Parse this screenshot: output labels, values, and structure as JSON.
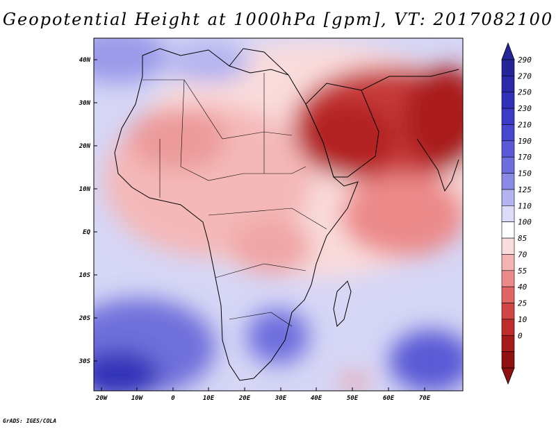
{
  "title": "Geopotential Height at 1000hPa [gpm], VT: 2017082100",
  "footer": "GrADS: IGES/COLA",
  "map": {
    "lon_range": [
      -25,
      80
    ],
    "lat_range": [
      -37,
      45
    ],
    "x_ticks": [
      "20W",
      "10W",
      "0",
      "10E",
      "20E",
      "30E",
      "40E",
      "50E",
      "60E",
      "70E"
    ],
    "y_ticks": [
      "40N",
      "30N",
      "20N",
      "10N",
      "EQ",
      "10S",
      "20S",
      "30S"
    ]
  },
  "colorbar": {
    "labels": [
      "290",
      "270",
      "250",
      "230",
      "210",
      "190",
      "170",
      "150",
      "125",
      "110",
      "100",
      "85",
      "70",
      "55",
      "40",
      "25",
      "10",
      "0"
    ],
    "colors": [
      "#25259a",
      "#2a2aa8",
      "#3030b8",
      "#3b3bc6",
      "#4646ce",
      "#5a5ad6",
      "#6e6ede",
      "#8a8ae6",
      "#b4b4f0",
      "#dcdcfa",
      "#ffffff",
      "#fadcdc",
      "#f4b4b4",
      "#ec8a8a",
      "#e06666",
      "#d24646",
      "#bf2c2c",
      "#a81a1a",
      "#8e1010"
    ]
  },
  "chart_data": {
    "type": "heatmap",
    "title": "Geopotential Height at 1000hPa [gpm], VT: 2017082100",
    "variable": "Geopotential Height at 1000hPa",
    "units": "gpm",
    "valid_time": "2017082100",
    "x_range": [
      -25,
      80
    ],
    "y_range": [
      -37,
      45
    ],
    "levels": [
      0,
      10,
      25,
      40,
      55,
      70,
      85,
      100,
      110,
      125,
      150,
      170,
      190,
      210,
      230,
      250,
      270,
      290
    ]
  }
}
